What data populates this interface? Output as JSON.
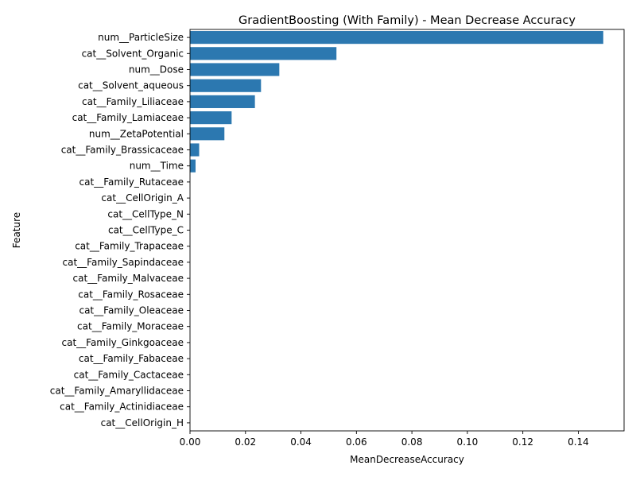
{
  "chart_data": {
    "type": "bar",
    "orientation": "horizontal",
    "title": "GradientBoosting (With Family) - Mean Decrease Accuracy",
    "xlabel": "MeanDecreaseAccuracy",
    "ylabel": "Feature",
    "xlim": [
      0,
      0.1565
    ],
    "xticks": [
      0.0,
      0.02,
      0.04,
      0.06,
      0.08,
      0.1,
      0.12,
      0.14
    ],
    "xtick_labels": [
      "0.00",
      "0.02",
      "0.04",
      "0.06",
      "0.08",
      "0.10",
      "0.12",
      "0.14"
    ],
    "grid": false,
    "bar_color": "#2c78b0",
    "categories": [
      "num__ParticleSize",
      "cat__Solvent_Organic",
      "num__Dose",
      "cat__Solvent_aqueous",
      "cat__Family_Liliaceae",
      "cat__Family_Lamiaceae",
      "num__ZetaPotential",
      "cat__Family_Brassicaceae",
      "num__Time",
      "cat__Family_Rutaceae",
      "cat__CellOrigin_A",
      "cat__CellType_N",
      "cat__CellType_C",
      "cat__Family_Trapaceae",
      "cat__Family_Sapindaceae",
      "cat__Family_Malvaceae",
      "cat__Family_Rosaceae",
      "cat__Family_Oleaceae",
      "cat__Family_Moraceae",
      "cat__Family_Ginkgoaceae",
      "cat__Family_Fabaceae",
      "cat__Family_Cactaceae",
      "cat__Family_Amaryllidaceae",
      "cat__Family_Actinidiaceae ",
      "cat__CellOrigin_H"
    ],
    "values": [
      0.149,
      0.0528,
      0.0322,
      0.0256,
      0.0234,
      0.015,
      0.0124,
      0.0033,
      0.002,
      0,
      0,
      0,
      0,
      0,
      0,
      0,
      0,
      0,
      0,
      0,
      0,
      0,
      0,
      0,
      0
    ]
  }
}
